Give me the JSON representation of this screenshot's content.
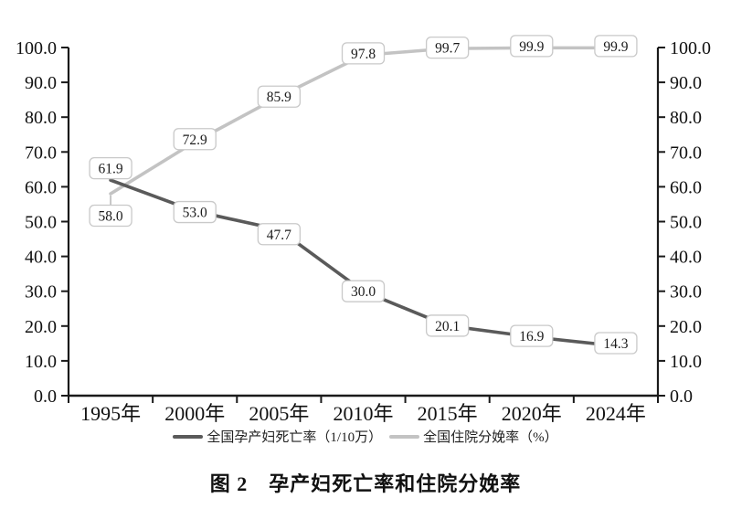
{
  "figure": {
    "caption": "图 2　孕产妇死亡率和住院分娩率"
  },
  "chart_data": {
    "type": "line",
    "title": "图 2　孕产妇死亡率和住院分娩率",
    "categories": [
      "1995年",
      "2000年",
      "2005年",
      "2010年",
      "2015年",
      "2020年",
      "2024年"
    ],
    "series": [
      {
        "name": "全国孕产妇死亡率（1/10万）",
        "values": [
          61.9,
          53.0,
          47.7,
          30.0,
          20.1,
          16.9,
          14.3
        ],
        "color": "#5a5a5a"
      },
      {
        "name": "全国住院分娩率（%）",
        "values": [
          58.0,
          72.9,
          85.9,
          97.8,
          99.7,
          99.9,
          99.9
        ],
        "color": "#c3c3c3"
      }
    ],
    "ylim": [
      0,
      100
    ],
    "y_tick_labels": [
      "100.0",
      "90.0",
      "80.0",
      "70.0",
      "60.0",
      "50.0",
      "40.0",
      "30.0",
      "20.0",
      "10.0",
      "0.0"
    ],
    "dual_y_axis": true,
    "grid": false,
    "legend_position": "bottom",
    "data_labels": true,
    "axis_color": "#1a1a1a",
    "label_style": {
      "fill": "#ffffff",
      "border": "#c9c9c9",
      "text_color": "#1a1a1a"
    },
    "label_offsets": [
      [
        [
          0,
          -13
        ],
        [
          0,
          1
        ],
        [
          0,
          5
        ],
        [
          0,
          0
        ],
        [
          0,
          0
        ],
        [
          0,
          -1
        ],
        [
          0,
          -3
        ]
      ],
      [
        [
          0,
          24
        ],
        [
          0,
          -3
        ],
        [
          0,
          0
        ],
        [
          0,
          -2
        ],
        [
          0,
          -1
        ],
        [
          0,
          -2
        ],
        [
          0,
          -2
        ]
      ]
    ],
    "leader_lines": [
      {
        "series": 1,
        "index": 0
      }
    ]
  }
}
